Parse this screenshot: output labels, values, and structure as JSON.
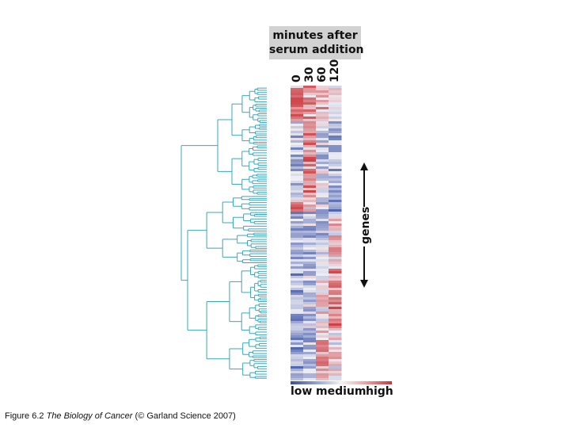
{
  "header": {
    "line1": "minutes after",
    "line2": "serum addition"
  },
  "timepoints": [
    "0",
    "30",
    "60",
    "120"
  ],
  "axis_label": "genes",
  "scale": {
    "low": "low",
    "medium": "medium",
    "high": "high"
  },
  "caption": {
    "prefix": "Figure 6.2 ",
    "title": "The Biology of Cancer",
    "suffix": " (© Garland Science 2007)"
  },
  "colors": {
    "low": "#3a4e96",
    "medium": "#f4f4f4",
    "high": "#c8373c",
    "dendrogram": "#35a8bf",
    "header_bg": "#d2d2d2"
  }
}
